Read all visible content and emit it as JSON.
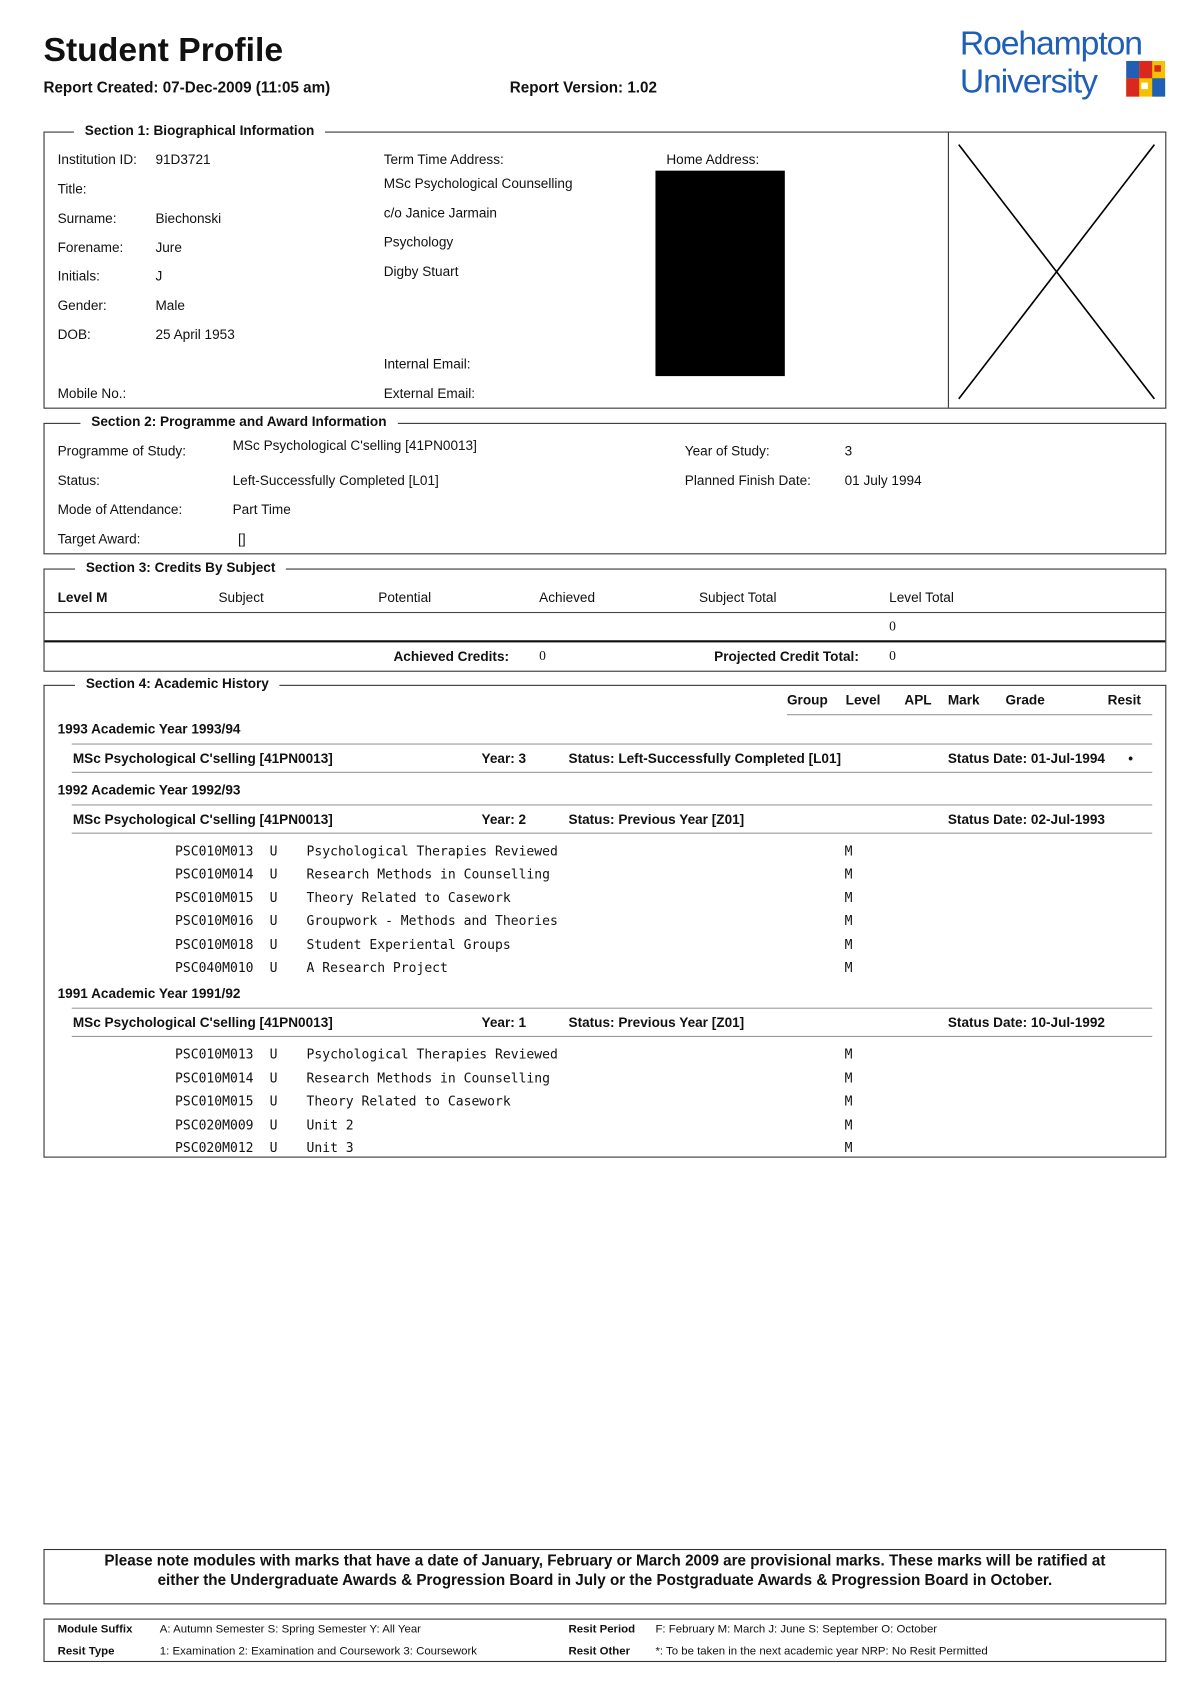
{
  "header": {
    "title": "Student Profile",
    "report_created": "Report Created: 07-Dec-2009 (11:05 am)",
    "report_version": "Report Version: 1.02",
    "logo_line1": "Roehampton",
    "logo_line2": "University",
    "brand_color": "#1f5fb5"
  },
  "section1": {
    "legend": "Section 1: Biographical Information",
    "fields": [
      {
        "label": "Institution ID:",
        "value": "91D3721"
      },
      {
        "label": "Title:",
        "value": ""
      },
      {
        "label": "Surname:",
        "value": "Biechonski"
      },
      {
        "label": "Forename:",
        "value": "Jure"
      },
      {
        "label": "Initials:",
        "value": "J"
      },
      {
        "label": "Gender:",
        "value": "Male"
      },
      {
        "label": "DOB:",
        "value": "25 April 1953"
      },
      {
        "label": "Mobile No.:",
        "value": ""
      }
    ],
    "term_address_label": "Term Time Address:",
    "term_address": [
      "MSc Psychological Counselling",
      "c/o Janice Jarmain",
      "Psychology",
      "Digby Stuart"
    ],
    "internal_email_label": "Internal Email:",
    "external_email_label": "External Email:",
    "home_address_label": "Home Address:"
  },
  "section2": {
    "legend": "Section 2: Programme and Award Information",
    "programme_label": "Programme of Study:",
    "programme": "MSc Psychological C'selling  [41PN0013]",
    "status_label": "Status:",
    "status": "Left-Successfully Completed  [L01]",
    "mode_label": "Mode of Attendance:",
    "mode": "Part Time",
    "target_label": "Target Award:",
    "target": "[]",
    "year_label": "Year of Study:",
    "year": "3",
    "finish_label": "Planned Finish Date:",
    "finish": "01 July 1994"
  },
  "section3": {
    "legend": "Section 3: Credits By Subject",
    "level": "Level M",
    "columns": [
      "Subject",
      "Potential",
      "Achieved",
      "Subject Total",
      "Level Total"
    ],
    "level_total": "0",
    "achieved_label": "Achieved Credits:",
    "achieved": "0",
    "projected_label": "Projected Credit Total:",
    "projected": "0"
  },
  "section4": {
    "legend": "Section 4: Academic History",
    "columns": [
      "Group",
      "Level",
      "APL",
      "Mark",
      "Grade",
      "Resit"
    ],
    "years": [
      {
        "heading": "1993  Academic Year 1993/94",
        "programme": "MSc Psychological C'selling  [41PN0013]",
        "year": "Year:  3",
        "status": "Status:  Left-Successfully Completed  [L01]",
        "status_date": "Status Date:  01-Jul-1994",
        "flag": "•",
        "modules": []
      },
      {
        "heading": "1992  Academic Year 1992/93",
        "programme": "MSc Psychological C'selling  [41PN0013]",
        "year": "Year:  2",
        "status": "Status:  Previous Year  [Z01]",
        "status_date": "Status Date:  02-Jul-1993",
        "flag": "",
        "modules": [
          {
            "code": "PSC010M013",
            "suffix": "U",
            "title": "Psychological Therapies Reviewed",
            "level": "M"
          },
          {
            "code": "PSC010M014",
            "suffix": "U",
            "title": "Research Methods in Counselling",
            "level": "M"
          },
          {
            "code": "PSC010M015",
            "suffix": "U",
            "title": "Theory Related to Casework",
            "level": "M"
          },
          {
            "code": "PSC010M016",
            "suffix": "U",
            "title": "Groupwork - Methods and Theories",
            "level": "M"
          },
          {
            "code": "PSC010M018",
            "suffix": "U",
            "title": "Student Experiental Groups",
            "level": "M"
          },
          {
            "code": "PSC040M010",
            "suffix": "U",
            "title": "A Research Project",
            "level": "M"
          }
        ]
      },
      {
        "heading": "1991  Academic Year 1991/92",
        "programme": "MSc Psychological C'selling  [41PN0013]",
        "year": "Year:  1",
        "status": "Status:  Previous Year  [Z01]",
        "status_date": "Status Date:  10-Jul-1992",
        "flag": "",
        "modules": [
          {
            "code": "PSC010M013",
            "suffix": "U",
            "title": "Psychological Therapies Reviewed",
            "level": "M"
          },
          {
            "code": "PSC010M014",
            "suffix": "U",
            "title": "Research Methods in Counselling",
            "level": "M"
          },
          {
            "code": "PSC010M015",
            "suffix": "U",
            "title": "Theory Related to Casework",
            "level": "M"
          },
          {
            "code": "PSC020M009",
            "suffix": "U",
            "title": "Unit 2",
            "level": "M"
          },
          {
            "code": "PSC020M012",
            "suffix": "U",
            "title": "Unit 3",
            "level": "M"
          }
        ]
      }
    ]
  },
  "note": {
    "line1": "Please note modules with marks that have a date of January, February or March 2009 are provisional marks.  These marks will be ratified at",
    "line2": "either the Undergraduate Awards & Progression Board in July or the Postgraduate Awards & Progression Board in October."
  },
  "key": {
    "module_suffix_label": "Module Suffix",
    "module_suffix": "A: Autumn Semester  S: Spring Semester  Y: All Year",
    "resit_type_label": "Resit Type",
    "resit_type": "1: Examination  2: Examination and Coursework  3: Coursework",
    "resit_period_label": "Resit Period",
    "resit_period": "F: February  M: March  J: June  S: September  O: October",
    "resit_other_label": "Resit Other",
    "resit_other": "*: To be taken in the next academic year  NRP: No Resit Permitted"
  }
}
